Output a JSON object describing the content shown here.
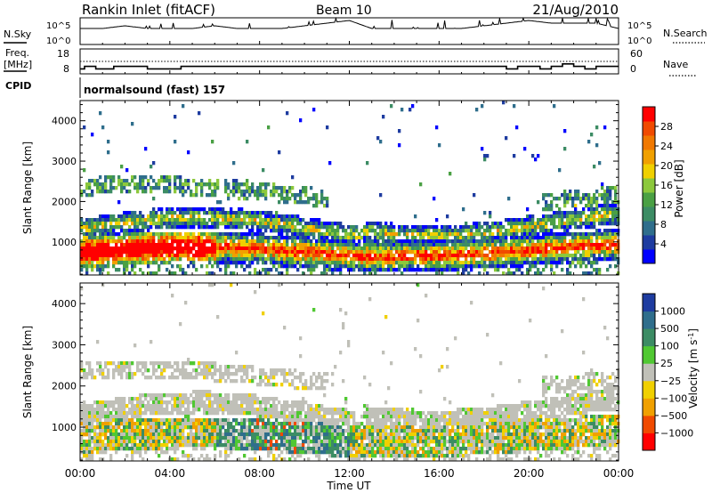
{
  "header": {
    "station": "Rankin Inlet (fitACF)",
    "beam": "Beam 10",
    "date": "21/Aug/2010"
  },
  "panels": {
    "nsky_label": "N.Sky",
    "nsky_ticks": [
      "10^5",
      "10^0"
    ],
    "nsearch_label": "N.Search",
    "nsearch_ticks": [
      "10^5",
      "10^0"
    ],
    "freq_label_1": "Freq.",
    "freq_label_2": "[MHz]",
    "freq_ticks": [
      "18",
      "8"
    ],
    "nave_label": "Nave",
    "nave_ticks": [
      "60",
      "0"
    ],
    "cpid_label": "CPID",
    "cpid_text": "normalsound (fast) 157"
  },
  "axes": {
    "ylabel": "Slant Range [km]",
    "xlabel": "Time UT",
    "x_ticks": [
      "00:00",
      "04:00",
      "08:00",
      "12:00",
      "16:00",
      "20:00",
      "00:00"
    ],
    "y_ticks": [
      "4000",
      "3000",
      "2000",
      "1000"
    ]
  },
  "colors": {
    "power": [
      "#0000ff",
      "#1e3ca0",
      "#2f6e8c",
      "#3c8c64",
      "#4aa044",
      "#8cc83c",
      "#f0d000",
      "#f0a000",
      "#f07800",
      "#f04a00",
      "#ff0000"
    ],
    "velocity": [
      "#ff0000",
      "#f04a00",
      "#f0a000",
      "#f0d000",
      "#c0c0b8",
      "#50c832",
      "#3c8c64",
      "#2f6e8c",
      "#1e3ca0"
    ]
  },
  "chart_data": [
    {
      "type": "line",
      "name": "N.Sky",
      "x": [
        0,
        1,
        2,
        3,
        4,
        5,
        6,
        7,
        8,
        9,
        10,
        11,
        12,
        13,
        14,
        15,
        16,
        17,
        18,
        19,
        20,
        21,
        22,
        23,
        24
      ],
      "values": [
        3,
        3,
        3.5,
        3,
        3,
        3,
        3.5,
        3,
        3,
        3,
        3.5,
        4,
        4.5,
        3,
        3,
        3,
        3,
        3,
        3.5,
        4,
        4.5,
        4,
        4,
        4,
        3
      ]
    },
    {
      "type": "line",
      "name": "Freq.",
      "x": [
        0,
        0.2,
        0.7,
        1.5,
        3,
        4.5,
        6,
        8,
        10,
        11.5,
        13,
        16,
        19,
        19.5,
        20.5,
        21,
        21.5,
        22,
        22.5,
        23,
        24
      ],
      "values": [
        10,
        11,
        10,
        11,
        10,
        11,
        11,
        11,
        11,
        11,
        11,
        11,
        10,
        11,
        10,
        11,
        12,
        11,
        10,
        11,
        11
      ],
      "ylim": [
        8,
        18
      ]
    },
    {
      "type": "heatmap",
      "name": "Power [dB]",
      "ylabel": "Slant Range [km]",
      "colorbar_label": "Power [dB]",
      "colorbar_ticks": [
        "28",
        "24",
        "20",
        "16",
        "12",
        "8",
        "4"
      ],
      "xlim": [
        0,
        24
      ],
      "ylim": [
        180,
        4500
      ]
    },
    {
      "type": "heatmap",
      "name": "Velocity [m s-1]",
      "ylabel": "Slant Range [km]",
      "colorbar_label": "Velocity [m s",
      "colorbar_label_sup": "-1",
      "colorbar_label_end": "]",
      "colorbar_ticks": [
        "1000",
        "500",
        "100",
        "25",
        "−25",
        "−100",
        "−500",
        "−1000"
      ],
      "xlim": [
        0,
        24
      ],
      "ylim": [
        180,
        4500
      ]
    }
  ]
}
